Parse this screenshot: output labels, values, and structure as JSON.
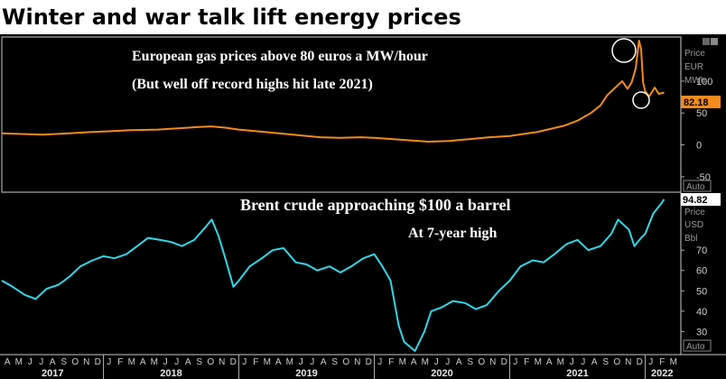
{
  "headline": "Winter and war talk lift energy prices",
  "colors": {
    "gas": "#f28c1c",
    "brent": "#30d8e8",
    "background": "#000000",
    "frame": "#cccccc"
  },
  "icons": {
    "settings": "settings-icon"
  },
  "chart_data": [
    {
      "type": "line",
      "panel": "top",
      "annotation_title": "European gas prices above 80 euros a MW/hour",
      "annotation_subtitle": "(But well off record highs hit late 2021)",
      "unit_labels": [
        "Price",
        "EUR",
        "MWh"
      ],
      "last_value_label": "82.18",
      "scale_mode": "Auto",
      "ylim": [
        -70,
        165
      ],
      "y_ticks": [
        100,
        50,
        0,
        -50
      ],
      "x_range": [
        2017.25,
        2022.25
      ],
      "series": [
        {
          "values": [
            [
              2017.25,
              18
            ],
            [
              2017.4,
              17
            ],
            [
              2017.55,
              16
            ],
            [
              2017.75,
              18
            ],
            [
              2017.9,
              20
            ],
            [
              2018.0,
              21
            ],
            [
              2018.2,
              23
            ],
            [
              2018.4,
              24
            ],
            [
              2018.55,
              26
            ],
            [
              2018.7,
              28
            ],
            [
              2018.8,
              29
            ],
            [
              2018.9,
              27
            ],
            [
              2019.0,
              24
            ],
            [
              2019.2,
              20
            ],
            [
              2019.4,
              16
            ],
            [
              2019.6,
              12
            ],
            [
              2019.75,
              11
            ],
            [
              2019.9,
              12
            ],
            [
              2020.0,
              11
            ],
            [
              2020.2,
              8
            ],
            [
              2020.4,
              5
            ],
            [
              2020.55,
              6
            ],
            [
              2020.7,
              9
            ],
            [
              2020.85,
              12
            ],
            [
              2021.0,
              14
            ],
            [
              2021.1,
              17
            ],
            [
              2021.2,
              20
            ],
            [
              2021.3,
              25
            ],
            [
              2021.4,
              30
            ],
            [
              2021.5,
              38
            ],
            [
              2021.6,
              50
            ],
            [
              2021.67,
              62
            ],
            [
              2021.72,
              78
            ],
            [
              2021.78,
              90
            ],
            [
              2021.83,
              100
            ],
            [
              2021.87,
              88
            ],
            [
              2021.9,
              98
            ],
            [
              2021.93,
              120
            ],
            [
              2021.955,
              178
            ],
            [
              2021.97,
              150
            ],
            [
              2021.985,
              98
            ],
            [
              2022.0,
              84
            ],
            [
              2022.03,
              76
            ],
            [
              2022.07,
              90
            ],
            [
              2022.1,
              80
            ],
            [
              2022.14,
              82
            ]
          ]
        }
      ]
    },
    {
      "type": "line",
      "panel": "bottom",
      "annotation_title": "Brent crude approaching $100 a barrel",
      "annotation_subtitle": "At 7-year high",
      "unit_labels": [
        "Price",
        "USD",
        "Bbl"
      ],
      "last_value_label": "94.82",
      "scale_mode": "Auto",
      "ylim": [
        20,
        98
      ],
      "y_ticks": [
        70,
        60,
        50,
        40,
        30
      ],
      "x_range": [
        2017.25,
        2022.25
      ],
      "x_month_labels": [
        "M",
        "A",
        "M",
        "J",
        "J",
        "A",
        "S",
        "O",
        "N",
        "D",
        "J",
        "F",
        "M",
        "A",
        "M",
        "J",
        "J",
        "A",
        "S",
        "O",
        "N",
        "D",
        "J",
        "F",
        "M",
        "A",
        "M",
        "J",
        "J",
        "A",
        "S",
        "O",
        "N",
        "D",
        "J",
        "F",
        "M",
        "A",
        "M",
        "J",
        "J",
        "A",
        "S",
        "O",
        "N",
        "D",
        "J",
        "F",
        "M",
        "A",
        "M",
        "J",
        "J",
        "A",
        "S",
        "O",
        "N",
        "D",
        "J",
        "F",
        "M"
      ],
      "x_year_labels": [
        "2017",
        "2018",
        "2019",
        "2020",
        "2021",
        "2022"
      ],
      "series": [
        {
          "values": [
            [
              2017.25,
              55
            ],
            [
              2017.33,
              52
            ],
            [
              2017.42,
              48
            ],
            [
              2017.5,
              46
            ],
            [
              2017.58,
              51
            ],
            [
              2017.67,
              53
            ],
            [
              2017.75,
              57
            ],
            [
              2017.83,
              62
            ],
            [
              2017.92,
              65
            ],
            [
              2018.0,
              67
            ],
            [
              2018.08,
              66
            ],
            [
              2018.17,
              68
            ],
            [
              2018.25,
              72
            ],
            [
              2018.33,
              76
            ],
            [
              2018.42,
              75
            ],
            [
              2018.5,
              74
            ],
            [
              2018.58,
              72
            ],
            [
              2018.67,
              75
            ],
            [
              2018.75,
              81
            ],
            [
              2018.8,
              85
            ],
            [
              2018.85,
              77
            ],
            [
              2018.9,
              66
            ],
            [
              2018.96,
              52
            ],
            [
              2019.0,
              55
            ],
            [
              2019.08,
              62
            ],
            [
              2019.17,
              66
            ],
            [
              2019.25,
              70
            ],
            [
              2019.33,
              71
            ],
            [
              2019.42,
              64
            ],
            [
              2019.5,
              63
            ],
            [
              2019.58,
              60
            ],
            [
              2019.67,
              62
            ],
            [
              2019.75,
              59
            ],
            [
              2019.83,
              62
            ],
            [
              2019.92,
              66
            ],
            [
              2020.0,
              68
            ],
            [
              2020.06,
              62
            ],
            [
              2020.12,
              55
            ],
            [
              2020.18,
              33
            ],
            [
              2020.22,
              25
            ],
            [
              2020.3,
              20
            ],
            [
              2020.37,
              30
            ],
            [
              2020.42,
              40
            ],
            [
              2020.5,
              42
            ],
            [
              2020.58,
              45
            ],
            [
              2020.67,
              44
            ],
            [
              2020.75,
              41
            ],
            [
              2020.83,
              43
            ],
            [
              2020.92,
              50
            ],
            [
              2021.0,
              55
            ],
            [
              2021.08,
              62
            ],
            [
              2021.17,
              65
            ],
            [
              2021.25,
              64
            ],
            [
              2021.33,
              68
            ],
            [
              2021.42,
              73
            ],
            [
              2021.5,
              75
            ],
            [
              2021.58,
              70
            ],
            [
              2021.67,
              72
            ],
            [
              2021.75,
              78
            ],
            [
              2021.8,
              85
            ],
            [
              2021.88,
              80
            ],
            [
              2021.92,
              72
            ],
            [
              2021.97,
              76
            ],
            [
              2022.0,
              78
            ],
            [
              2022.06,
              88
            ],
            [
              2022.12,
              93
            ],
            [
              2022.14,
              95
            ]
          ]
        }
      ]
    }
  ]
}
